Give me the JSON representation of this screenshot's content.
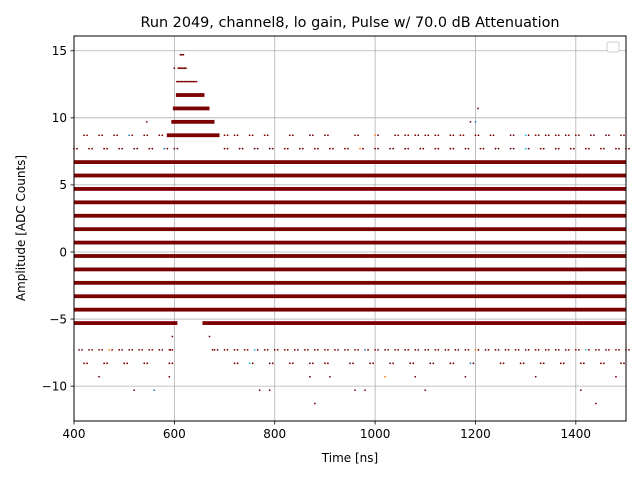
{
  "chart_data": {
    "type": "scatter",
    "title": "Run 2049, channel8, lo gain, Pulse w/ 70.0 dB Attenuation",
    "xlabel": "Time [ns]",
    "ylabel": "Amplitude [ADC Counts]",
    "xlim": [
      400,
      1500
    ],
    "ylim": [
      -12.6,
      16.1
    ],
    "x_ticks": [
      400,
      600,
      800,
      1000,
      1200,
      1400
    ],
    "y_ticks": [
      -10,
      -5,
      0,
      5,
      10,
      15
    ],
    "grid": true,
    "legend": {
      "placement": "top-right",
      "entries": []
    },
    "colors": {
      "points": "#7b0000",
      "accent_points": [
        "#1f77b4",
        "#17becf",
        "#ff7f0e"
      ]
    },
    "levels": [
      -11.3,
      -10.3,
      -9.3,
      -8.3,
      -7.3,
      -6.3,
      -5.3,
      -4.3,
      -3.3,
      -2.3,
      -1.3,
      -0.3,
      0.7,
      1.7,
      2.7,
      3.7,
      4.7,
      5.7,
      6.7,
      7.7,
      8.7,
      9.7,
      10.7,
      11.7,
      12.7,
      13.7,
      14.7
    ],
    "continuous_levels": [
      -5.3,
      -4.3,
      -3.3,
      -2.3,
      -1.3,
      -0.3,
      0.7,
      1.7,
      2.7,
      3.7,
      4.7,
      5.7,
      6.7
    ],
    "sparse_levels": [
      {
        "y": -11.3,
        "x": [
          880,
          1440
        ]
      },
      {
        "y": -10.3,
        "x": [
          520,
          560,
          770,
          790,
          960,
          980,
          1100,
          1410
        ]
      },
      {
        "y": -9.3,
        "x": [
          450,
          590,
          870,
          910,
          1020,
          1080,
          1180,
          1320,
          1480
        ]
      },
      {
        "y": -8.3,
        "x": [
          420,
          460,
          500,
          540,
          590,
          720,
          750,
          790,
          830,
          870,
          900,
          950,
          990,
          1030,
          1070,
          1110,
          1150,
          1190,
          1250,
          1290,
          1330,
          1370,
          1410,
          1450,
          1490
        ]
      },
      {
        "y": -7.3,
        "x": [
          410,
          430,
          450,
          470,
          490,
          510,
          530,
          550,
          570,
          590,
          680,
          700,
          720,
          740,
          760,
          780,
          800,
          820,
          840,
          860,
          880,
          900,
          920,
          940,
          960,
          980,
          1000,
          1020,
          1040,
          1060,
          1080,
          1100,
          1120,
          1140,
          1160,
          1180,
          1200,
          1220,
          1240,
          1260,
          1280,
          1300,
          1320,
          1340,
          1360,
          1380,
          1400,
          1420,
          1440,
          1460,
          1480,
          1500
        ]
      },
      {
        "y": 7.7,
        "x": [
          400,
          430,
          460,
          490,
          520,
          550,
          580,
          600,
          700,
          730,
          760,
          790,
          820,
          850,
          880,
          910,
          940,
          970,
          1000,
          1030,
          1060,
          1090,
          1120,
          1150,
          1180,
          1210,
          1240,
          1270,
          1300,
          1330,
          1360,
          1390,
          1420,
          1450,
          1480,
          1500
        ]
      },
      {
        "y": 8.7,
        "x": [
          420,
          450,
          480,
          510,
          540,
          570,
          700,
          720,
          750,
          780,
          830,
          870,
          900,
          960,
          1000,
          1040,
          1060,
          1080,
          1100,
          1120,
          1150,
          1170,
          1200,
          1230,
          1270,
          1300,
          1320,
          1340,
          1360,
          1380,
          1400,
          1430,
          1460,
          1490
        ]
      },
      {
        "y": 9.7,
        "x": [
          545,
          1190,
          1200
        ]
      },
      {
        "y": 10.7,
        "x": [
          1205
        ]
      },
      {
        "y": 13.7,
        "x": [
          600
        ]
      }
    ],
    "pulse": {
      "peak_x": 615,
      "positive": [
        {
          "y": 8.7,
          "x": [
            585,
            690
          ]
        },
        {
          "y": 9.7,
          "x": [
            594,
            680
          ]
        },
        {
          "y": 10.7,
          "x": [
            597,
            670
          ]
        },
        {
          "y": 11.7,
          "x": [
            603,
            660
          ]
        },
        {
          "y": 12.7,
          "x": [
            605,
            645
          ]
        },
        {
          "y": 13.7,
          "x": [
            608,
            625
          ]
        },
        {
          "y": 14.7,
          "x": [
            612,
            618
          ]
        }
      ],
      "negative_gap": [
        {
          "y": -5.3,
          "x": [
            606,
            656
          ]
        },
        {
          "y": -6.3,
          "x": [
            598,
            668
          ]
        },
        {
          "y": -7.3,
          "x": [
            594,
            674
          ]
        }
      ]
    }
  }
}
